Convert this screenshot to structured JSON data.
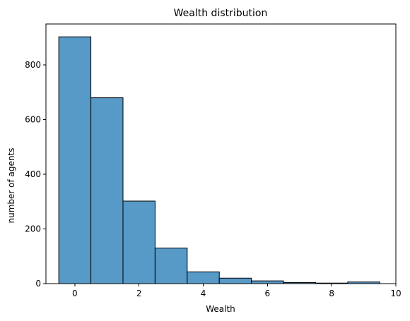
{
  "chart_data": {
    "type": "bar",
    "title": "Wealth distribution",
    "xlabel": "Wealth",
    "ylabel": "number of agents",
    "bins": [
      {
        "x": 0,
        "value": 903
      },
      {
        "x": 1,
        "value": 680
      },
      {
        "x": 2,
        "value": 302
      },
      {
        "x": 3,
        "value": 130
      },
      {
        "x": 4,
        "value": 43
      },
      {
        "x": 5,
        "value": 20
      },
      {
        "x": 6,
        "value": 10
      },
      {
        "x": 7,
        "value": 4
      },
      {
        "x": 8,
        "value": 2
      },
      {
        "x": 9,
        "value": 6
      }
    ],
    "bin_width": 1,
    "xlim": [
      -0.9,
      10
    ],
    "ylim": [
      0,
      950
    ],
    "x_ticks": [
      {
        "value": 0,
        "label": "0"
      },
      {
        "value": 2,
        "label": "2"
      },
      {
        "value": 4,
        "label": "4"
      },
      {
        "value": 6,
        "label": "6"
      },
      {
        "value": 8,
        "label": "8"
      },
      {
        "value": 10,
        "label": "10"
      }
    ],
    "y_ticks": [
      {
        "value": 0,
        "label": "0"
      },
      {
        "value": 200,
        "label": "200"
      },
      {
        "value": 400,
        "label": "400"
      },
      {
        "value": 600,
        "label": "600"
      },
      {
        "value": 800,
        "label": "800"
      }
    ],
    "grid": false,
    "bar_color": "#5799c7",
    "edge_color": "#000000"
  }
}
